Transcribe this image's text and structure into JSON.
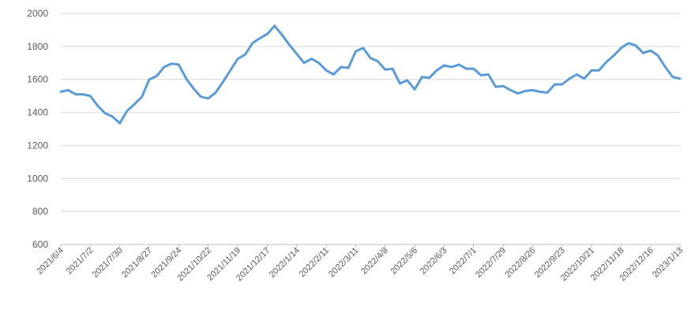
{
  "chart_data": {
    "type": "line",
    "title": "",
    "xlabel": "",
    "ylabel": "",
    "ylim": [
      600,
      2000
    ],
    "yticks": [
      600,
      800,
      1000,
      1200,
      1400,
      1600,
      1800,
      2000
    ],
    "grid": true,
    "legend": "none",
    "color": "#5B9BD5",
    "x": [
      "2021/6/4",
      "2021/6/11",
      "2021/6/18",
      "2021/6/25",
      "2021/7/2",
      "2021/7/9",
      "2021/7/16",
      "2021/7/23",
      "2021/7/30",
      "2021/8/6",
      "2021/8/13",
      "2021/8/20",
      "2021/8/27",
      "2021/9/3",
      "2021/9/10",
      "2021/9/17",
      "2021/9/24",
      "2021/10/1",
      "2021/10/8",
      "2021/10/15",
      "2021/10/22",
      "2021/10/29",
      "2021/11/5",
      "2021/11/12",
      "2021/11/19",
      "2021/11/26",
      "2021/12/3",
      "2021/12/10",
      "2021/12/17",
      "2021/12/24",
      "2021/12/31",
      "2022/1/7",
      "2022/1/14",
      "2022/1/21",
      "2022/1/28",
      "2022/2/4",
      "2022/2/11",
      "2022/2/18",
      "2022/2/25",
      "2022/3/4",
      "2022/3/11",
      "2022/3/18",
      "2022/3/25",
      "2022/4/1",
      "2022/4/8",
      "2022/4/15",
      "2022/4/22",
      "2022/4/29",
      "2022/5/6",
      "2022/5/13",
      "2022/5/20",
      "2022/5/27",
      "2022/6/3",
      "2022/6/10",
      "2022/6/17",
      "2022/6/24",
      "2022/7/1",
      "2022/7/8",
      "2022/7/15",
      "2022/7/22",
      "2022/7/29",
      "2022/8/5",
      "2022/8/12",
      "2022/8/19",
      "2022/8/26",
      "2022/9/2",
      "2022/9/9",
      "2022/9/16",
      "2022/9/23",
      "2022/9/30",
      "2022/10/7",
      "2022/10/14",
      "2022/10/21",
      "2022/10/28",
      "2022/11/4",
      "2022/11/11",
      "2022/11/18",
      "2022/11/25",
      "2022/12/2",
      "2022/12/9",
      "2022/12/16",
      "2022/12/23",
      "2022/12/30",
      "2023/1/6",
      "2023/1/13"
    ],
    "x_tick_labels": [
      "2021/6/4",
      "2021/7/2",
      "2021/7/30",
      "2021/8/27",
      "2021/9/24",
      "2021/10/22",
      "2021/11/19",
      "2021/12/17",
      "2022/1/14",
      "2022/2/11",
      "2022/3/11",
      "2022/4/8",
      "2022/5/6",
      "2022/6/3",
      "2022/7/1",
      "2022/7/29",
      "2022/8/26",
      "2022/9/23",
      "2022/10/21",
      "2022/11/18",
      "2022/12/16",
      "2023/1/13"
    ],
    "series": [
      {
        "values": [
          1525,
          1535,
          1510,
          1510,
          1500,
          1440,
          1395,
          1375,
          1335,
          1410,
          1450,
          1495,
          1600,
          1620,
          1675,
          1695,
          1690,
          1605,
          1545,
          1495,
          1485,
          1520,
          1585,
          1655,
          1725,
          1750,
          1820,
          1850,
          1875,
          1925,
          1870,
          1810,
          1755,
          1700,
          1725,
          1700,
          1655,
          1630,
          1675,
          1670,
          1770,
          1790,
          1730,
          1710,
          1660,
          1665,
          1575,
          1595,
          1540,
          1615,
          1610,
          1655,
          1685,
          1675,
          1690,
          1665,
          1665,
          1625,
          1630,
          1555,
          1560,
          1535,
          1515,
          1530,
          1535,
          1525,
          1520,
          1570,
          1570,
          1605,
          1630,
          1605,
          1655,
          1655,
          1705,
          1745,
          1790,
          1820,
          1805,
          1760,
          1775,
          1745,
          1675,
          1615,
          1605
        ]
      }
    ]
  }
}
